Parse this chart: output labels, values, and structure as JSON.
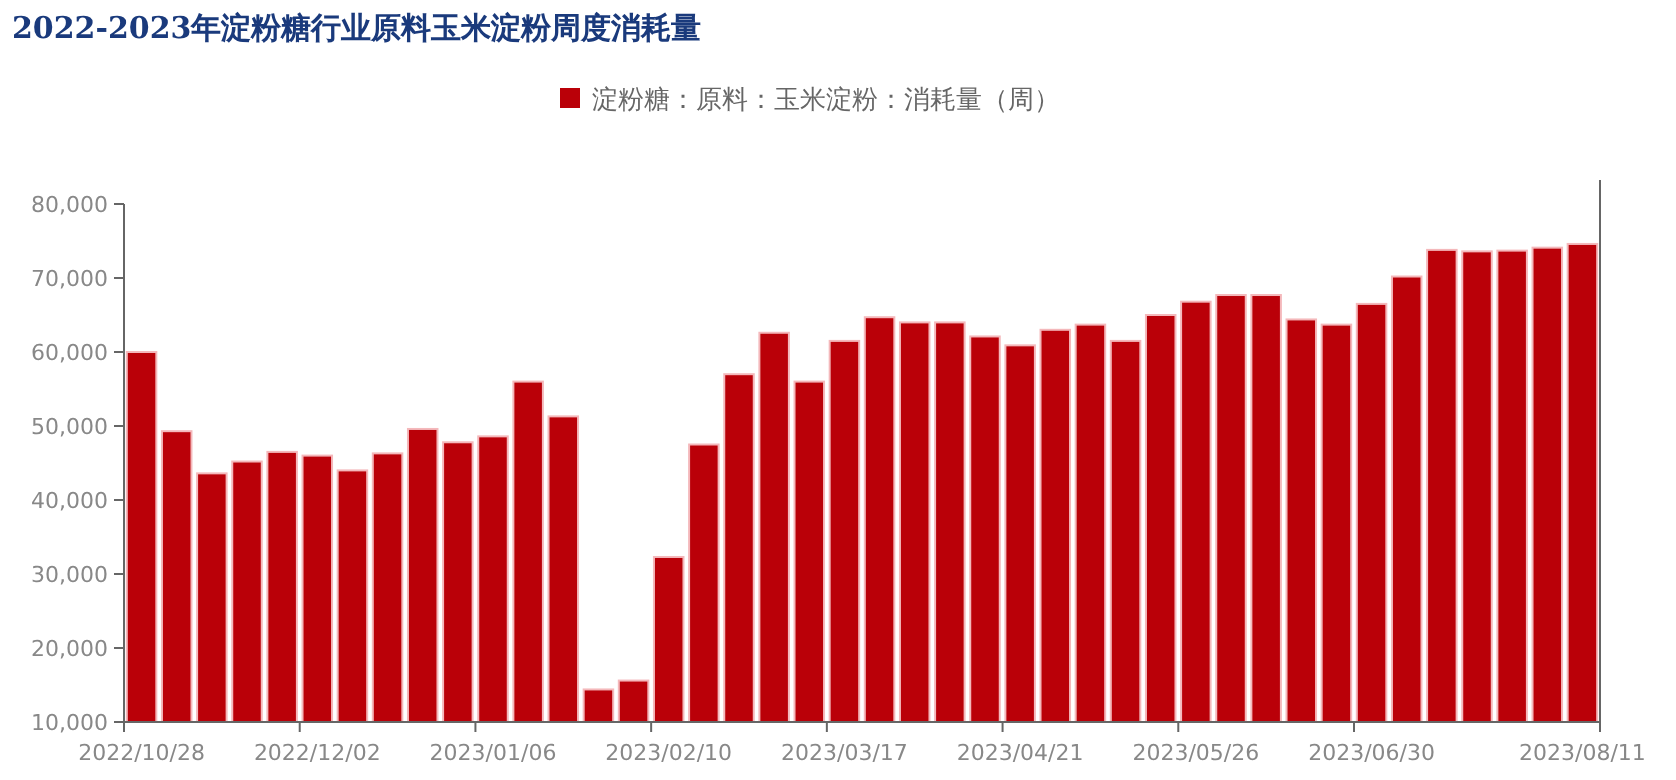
{
  "chart_data": {
    "type": "bar",
    "title": "2022-2023年淀粉糖行业原料玉米淀粉周度消耗量",
    "categories": [
      "2022/10/28",
      null,
      null,
      null,
      null,
      "2022/12/02",
      null,
      null,
      null,
      null,
      "2023/01/06",
      null,
      null,
      null,
      null,
      "2023/02/10",
      null,
      null,
      null,
      null,
      "2023/03/17",
      null,
      null,
      null,
      null,
      "2023/04/21",
      null,
      null,
      null,
      null,
      "2023/05/26",
      null,
      null,
      null,
      null,
      "2023/06/30",
      null,
      null,
      null,
      null,
      null,
      "2023/08/11"
    ],
    "series": [
      {
        "name": "淀粉糖：原料：玉米淀粉：消耗量（周）",
        "color": "#ba0008",
        "values": [
          60000,
          49300,
          43600,
          45200,
          46500,
          46000,
          44000,
          46300,
          49600,
          47800,
          48600,
          56000,
          51300,
          14400,
          15600,
          32300,
          47500,
          57000,
          62600,
          56000,
          61500,
          64700,
          64000,
          64000,
          62100,
          60900,
          63000,
          63700,
          61500,
          65000,
          66800,
          67700,
          67700,
          64400,
          63700,
          66500,
          70200,
          73800,
          73600,
          73700,
          74100,
          74600
        ]
      }
    ],
    "ylim": [
      10000,
      80000
    ],
    "yticks": [
      {
        "value": 10000,
        "label": "10,000"
      },
      {
        "value": 20000,
        "label": "20,000"
      },
      {
        "value": 30000,
        "label": "30,000"
      },
      {
        "value": 40000,
        "label": "40,000"
      },
      {
        "value": 50000,
        "label": "50,000"
      },
      {
        "value": 60000,
        "label": "60,000"
      },
      {
        "value": 70000,
        "label": "70,000"
      },
      {
        "value": 80000,
        "label": "80,000"
      }
    ],
    "grid": false,
    "legend": "top"
  }
}
